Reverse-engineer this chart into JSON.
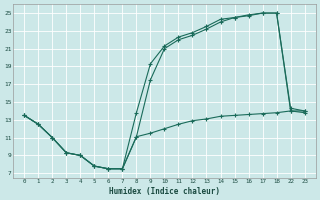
{
  "xlabel": "Humidex (Indice chaleur)",
  "bg_color": "#cce8e8",
  "grid_color": "#ffffff",
  "line_color": "#1a6b5a",
  "yticks": [
    7,
    9,
    11,
    13,
    15,
    17,
    19,
    21,
    23,
    25
  ],
  "ylim": [
    6.5,
    26.0
  ],
  "x_indices": [
    0,
    1,
    2,
    3,
    4,
    5,
    6,
    7,
    8,
    9,
    10,
    11,
    12,
    13,
    14,
    15,
    16,
    17,
    18,
    19,
    20
  ],
  "x_labels": [
    "0",
    "1",
    "2",
    "3",
    "4",
    "5",
    "6",
    "7",
    "8",
    "9",
    "10",
    "11",
    "12",
    "13",
    "14",
    "15",
    "16",
    "17",
    "18",
    "22",
    "23"
  ],
  "line1_idx": [
    0,
    1,
    2,
    3,
    4,
    5,
    6,
    7,
    8,
    9,
    10,
    11,
    12,
    13,
    14,
    15,
    16,
    17,
    18,
    19,
    20
  ],
  "line1_y": [
    13.5,
    12.5,
    11.0,
    9.3,
    9.0,
    7.8,
    7.5,
    7.5,
    13.8,
    19.3,
    21.3,
    22.3,
    22.8,
    23.5,
    24.3,
    24.5,
    24.8,
    25.0,
    25.0,
    14.3,
    14.0
  ],
  "line2_idx": [
    0,
    1,
    2,
    3,
    4,
    5,
    6,
    7,
    8,
    9,
    10,
    11,
    12,
    13,
    14,
    15,
    16,
    17,
    18,
    19,
    20
  ],
  "line2_y": [
    13.5,
    12.5,
    11.0,
    9.3,
    9.0,
    7.8,
    7.5,
    7.5,
    11.1,
    17.5,
    21.0,
    22.0,
    22.5,
    23.2,
    24.0,
    24.5,
    24.7,
    25.0,
    25.0,
    14.0,
    13.8
  ],
  "line3_idx": [
    0,
    1,
    2,
    3,
    4,
    5,
    6,
    7,
    8,
    9,
    10,
    11,
    12,
    13,
    14,
    15,
    16,
    17,
    18,
    19,
    20
  ],
  "line3_y": [
    13.5,
    12.5,
    11.0,
    9.3,
    9.0,
    7.8,
    7.5,
    7.5,
    11.1,
    11.5,
    12.0,
    12.5,
    12.9,
    13.1,
    13.4,
    13.5,
    13.6,
    13.7,
    13.8,
    14.0,
    14.0
  ]
}
